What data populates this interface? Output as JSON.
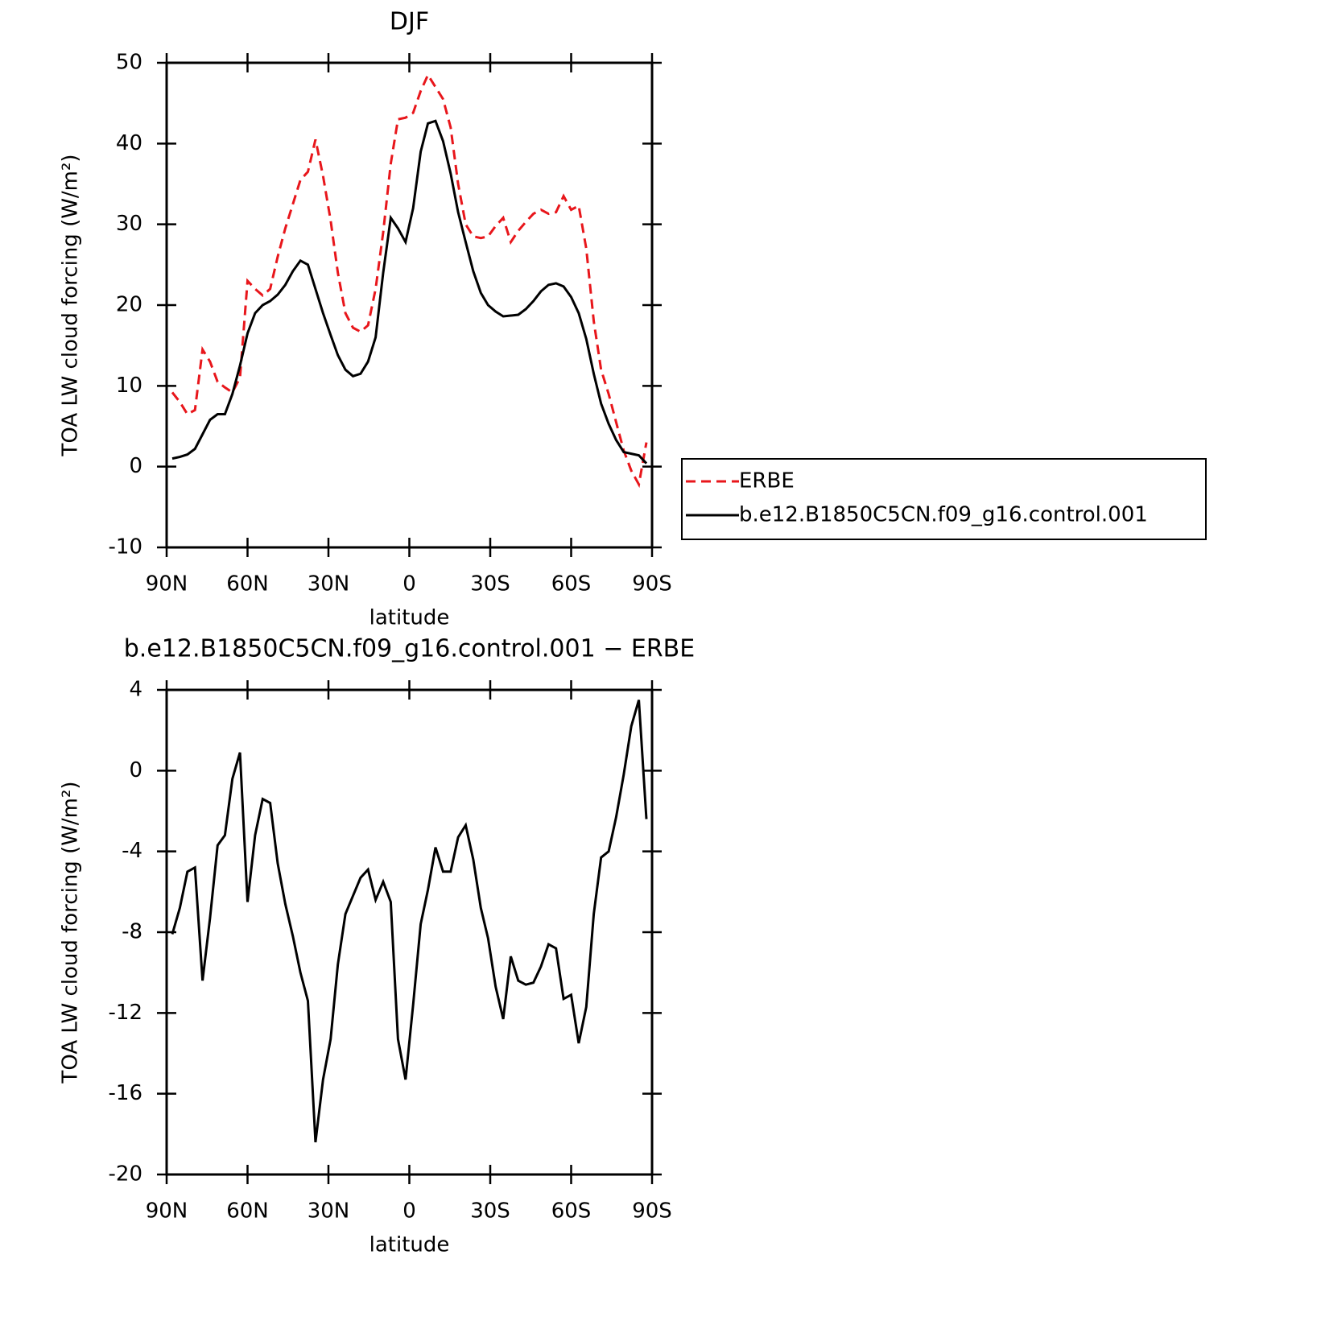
{
  "chart_data": [
    {
      "type": "line",
      "title": "DJF",
      "xlabel": "latitude",
      "ylabel": "TOA LW cloud forcing (W/m²)",
      "x": [
        87.9,
        85.1,
        82.3,
        79.5,
        76.7,
        73.9,
        71.1,
        68.4,
        65.6,
        62.8,
        60.0,
        57.2,
        54.4,
        51.6,
        48.8,
        46.0,
        43.2,
        40.4,
        37.6,
        34.8,
        32.0,
        29.2,
        26.5,
        23.7,
        20.9,
        18.1,
        15.3,
        12.5,
        9.7,
        6.9,
        4.2,
        1.4,
        -1.4,
        -4.2,
        -6.9,
        -9.7,
        -12.5,
        -15.3,
        -18.1,
        -20.9,
        -23.7,
        -26.5,
        -29.2,
        -32.0,
        -34.8,
        -37.6,
        -40.4,
        -43.2,
        -46.0,
        -48.8,
        -51.6,
        -54.4,
        -57.2,
        -60.0,
        -62.8,
        -65.6,
        -68.4,
        -71.1,
        -73.9,
        -76.7,
        -79.5,
        -82.3,
        -85.1,
        -87.9
      ],
      "series": [
        {
          "name": "ERBE",
          "color": "#e8161b",
          "linestyle": "dashed",
          "values": [
            9.2,
            8,
            6.5,
            7,
            14.5,
            13,
            10.5,
            9.8,
            9.2,
            11,
            23,
            22,
            21.2,
            22,
            26,
            29.5,
            32.5,
            35.5,
            36.5,
            40.5,
            36,
            30.5,
            24,
            19,
            17.2,
            16.7,
            17.5,
            22,
            29,
            37.5,
            43,
            43.2,
            43.8,
            46.5,
            48.5,
            47,
            45.5,
            42,
            35,
            30,
            28.5,
            28.3,
            28.5,
            29.8,
            30.8,
            27.8,
            29.2,
            30.3,
            31.3,
            31.8,
            31.3,
            31.5,
            33.5,
            31.8,
            32.3,
            27,
            18,
            12,
            9,
            5.5,
            2,
            -0.5,
            -2.2,
            3
          ]
        },
        {
          "name": "b.e12.B1850C5CN.f09_g16.control.001",
          "color": "#000000",
          "linestyle": "solid",
          "values": [
            1,
            1.2,
            1.5,
            2.2,
            4,
            5.8,
            6.5,
            6.5,
            9,
            12.5,
            16.5,
            19,
            20,
            20.5,
            21.3,
            22.5,
            24.2,
            25.5,
            25,
            22,
            19,
            16.3,
            13.8,
            12,
            11.2,
            11.5,
            13,
            16,
            24,
            30.8,
            29.5,
            27.8,
            32,
            39,
            42.5,
            42.8,
            40.3,
            36.3,
            31.5,
            27.8,
            24.2,
            21.5,
            20,
            19.2,
            18.6,
            18.7,
            18.8,
            19.5,
            20.5,
            21.7,
            22.5,
            22.7,
            22.3,
            21,
            19,
            15.8,
            11.5,
            7.8,
            5.3,
            3.3,
            1.8,
            1.6,
            1.4,
            0.4
          ]
        }
      ],
      "xlim": [
        90,
        -90
      ],
      "xticks": [
        {
          "value": 90,
          "label": "90N"
        },
        {
          "value": 60,
          "label": "60N"
        },
        {
          "value": 30,
          "label": "30N"
        },
        0,
        {
          "value": -30,
          "label": "30S"
        },
        {
          "value": -60,
          "label": "60S"
        },
        {
          "value": -90,
          "label": "90S"
        }
      ],
      "ylim": [
        -10,
        50
      ],
      "yticks": [
        -10,
        0,
        10,
        20,
        30,
        40,
        50
      ],
      "legend": "outside-right",
      "grid": false
    },
    {
      "type": "line",
      "title": "b.e12.B1850C5CN.f09_g16.control.001 − ERBE",
      "xlabel": "latitude",
      "ylabel": "TOA LW cloud forcing (W/m²)",
      "x": [
        87.9,
        85.1,
        82.3,
        79.5,
        76.7,
        73.9,
        71.1,
        68.4,
        65.6,
        62.8,
        60.0,
        57.2,
        54.4,
        51.6,
        48.8,
        46.0,
        43.2,
        40.4,
        37.6,
        34.8,
        32.0,
        29.2,
        26.5,
        23.7,
        20.9,
        18.1,
        15.3,
        12.5,
        9.7,
        6.9,
        4.2,
        1.4,
        -1.4,
        -4.2,
        -6.9,
        -9.7,
        -12.5,
        -15.3,
        -18.1,
        -20.9,
        -23.7,
        -26.5,
        -29.2,
        -32.0,
        -34.8,
        -37.6,
        -40.4,
        -43.2,
        -46.0,
        -48.8,
        -51.6,
        -54.4,
        -57.2,
        -60.0,
        -62.8,
        -65.6,
        -68.4,
        -71.1,
        -73.9,
        -76.7,
        -79.5,
        -82.3,
        -85.1,
        -87.9
      ],
      "color": "#000000",
      "values": [
        -8.1,
        -6.8,
        -5.0,
        -4.8,
        -10.4,
        -7.3,
        -3.7,
        -3.2,
        -0.4,
        0.9,
        -6.5,
        -3.2,
        -1.4,
        -1.6,
        -4.6,
        -6.6,
        -8.2,
        -10.0,
        -11.4,
        -18.4,
        -15.3,
        -13.3,
        -9.6,
        -7.1,
        -6.2,
        -5.3,
        -4.9,
        -6.4,
        -5.5,
        -6.5,
        -13.3,
        -15.3,
        -11.6,
        -7.6,
        -5.9,
        -3.8,
        -5.0,
        -5.0,
        -3.3,
        -2.7,
        -4.4,
        -6.8,
        -8.3,
        -10.7,
        -12.3,
        -9.2,
        -10.4,
        -10.6,
        -10.5,
        -9.7,
        -8.6,
        -8.8,
        -11.3,
        -11.1,
        -13.5,
        -11.7,
        -7.1,
        -4.3,
        -4.0,
        -2.3,
        -0.2,
        2.2,
        3.5,
        -2.4
      ],
      "xlim": [
        90,
        -90
      ],
      "xticks": [
        {
          "value": 90,
          "label": "90N"
        },
        {
          "value": 60,
          "label": "60N"
        },
        {
          "value": 30,
          "label": "30N"
        },
        0,
        {
          "value": -30,
          "label": "30S"
        },
        {
          "value": -60,
          "label": "60S"
        },
        {
          "value": -90,
          "label": "90S"
        }
      ],
      "ylim": [
        -20,
        4
      ],
      "yticks": [
        -20,
        -16,
        -12,
        -8,
        -4,
        0,
        4
      ],
      "grid": false
    }
  ]
}
